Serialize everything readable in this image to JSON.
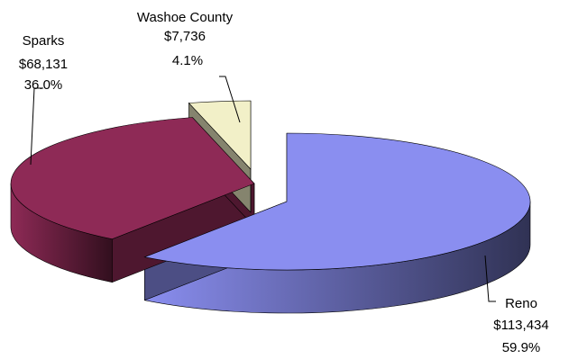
{
  "chart_data": {
    "type": "pie",
    "style": "3d-exploded",
    "title": "",
    "slices": [
      {
        "label": "Reno",
        "value": 113434,
        "value_text": "$113,434",
        "percent_text": "59.9%",
        "percent": 59.9,
        "color": "#8a8ef0"
      },
      {
        "label": "Sparks",
        "value": 68131,
        "value_text": "$68,131",
        "percent_text": "36.0%",
        "percent": 36.0,
        "color": "#8e2a56"
      },
      {
        "label": "Washoe County",
        "value": 7736,
        "value_text": "$7,736",
        "percent_text": "4.1%",
        "percent": 4.1,
        "color": "#f2f0c8"
      }
    ],
    "legend": "none",
    "grid": false
  }
}
